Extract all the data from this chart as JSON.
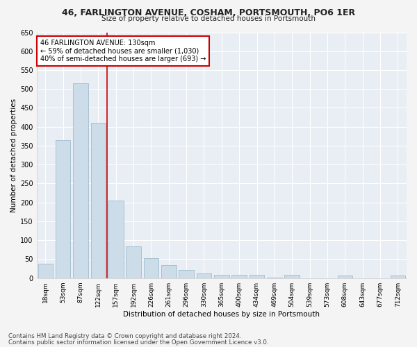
{
  "title": "46, FARLINGTON AVENUE, COSHAM, PORTSMOUTH, PO6 1ER",
  "subtitle": "Size of property relative to detached houses in Portsmouth",
  "xlabel": "Distribution of detached houses by size in Portsmouth",
  "ylabel": "Number of detached properties",
  "bar_color": "#ccdce8",
  "bar_edge_color": "#a0bcd0",
  "background_color": "#e8eef4",
  "grid_color": "#ffffff",
  "fig_bg_color": "#f4f4f4",
  "categories": [
    "18sqm",
    "53sqm",
    "87sqm",
    "122sqm",
    "157sqm",
    "192sqm",
    "226sqm",
    "261sqm",
    "296sqm",
    "330sqm",
    "365sqm",
    "400sqm",
    "434sqm",
    "469sqm",
    "504sqm",
    "539sqm",
    "573sqm",
    "608sqm",
    "643sqm",
    "677sqm",
    "712sqm"
  ],
  "values": [
    38,
    365,
    515,
    410,
    205,
    84,
    53,
    35,
    22,
    12,
    8,
    8,
    8,
    2,
    8,
    0,
    0,
    6,
    0,
    0,
    6
  ],
  "ylim": [
    0,
    650
  ],
  "yticks": [
    0,
    50,
    100,
    150,
    200,
    250,
    300,
    350,
    400,
    450,
    500,
    550,
    600,
    650
  ],
  "vline_index": 3,
  "vline_color": "#cc0000",
  "annotation_text": "46 FARLINGTON AVENUE: 130sqm\n← 59% of detached houses are smaller (1,030)\n40% of semi-detached houses are larger (693) →",
  "annotation_box_color": "#ffffff",
  "annotation_box_edge": "#cc0000",
  "footer_line1": "Contains HM Land Registry data © Crown copyright and database right 2024.",
  "footer_line2": "Contains public sector information licensed under the Open Government Licence v3.0.",
  "figsize": [
    6.0,
    5.0
  ],
  "dpi": 100
}
